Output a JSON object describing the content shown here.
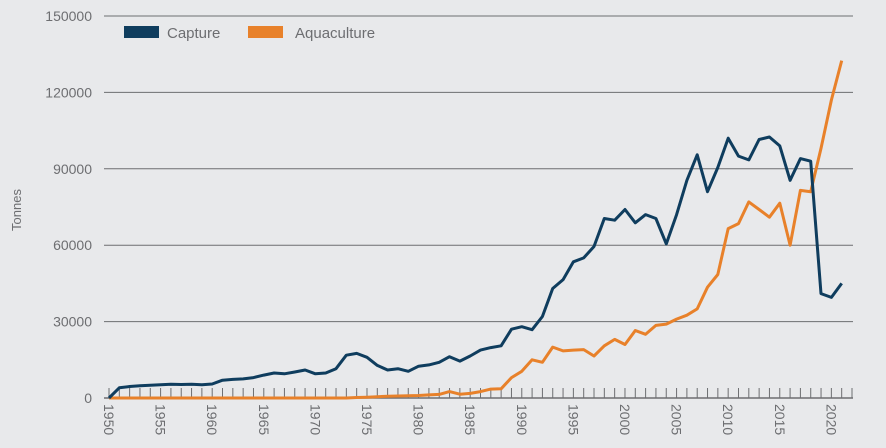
{
  "chart_data": {
    "type": "line",
    "title": "",
    "xlabel": "",
    "ylabel": "Tonnes",
    "ylim": [
      0,
      150000
    ],
    "xlim": [
      1950,
      2022
    ],
    "yticks": [
      0,
      30000,
      60000,
      90000,
      120000,
      150000
    ],
    "ytick_labels": [
      "0",
      "30000",
      "60000",
      "90000",
      "120000",
      "150000"
    ],
    "xtick_labels": [
      "1950",
      "1955",
      "1960",
      "1965",
      "1970",
      "1975",
      "1980",
      "1985",
      "1990",
      "1995",
      "2000",
      "2005",
      "2010",
      "2015",
      "2020"
    ],
    "grid": "horizontal",
    "legend_position": "top-left",
    "x": [
      1950,
      1951,
      1952,
      1953,
      1954,
      1955,
      1956,
      1957,
      1958,
      1959,
      1960,
      1961,
      1962,
      1963,
      1964,
      1965,
      1966,
      1967,
      1968,
      1969,
      1970,
      1971,
      1972,
      1973,
      1974,
      1975,
      1976,
      1977,
      1978,
      1979,
      1980,
      1981,
      1982,
      1983,
      1984,
      1985,
      1986,
      1987,
      1988,
      1989,
      1990,
      1991,
      1992,
      1993,
      1994,
      1995,
      1996,
      1997,
      1998,
      1999,
      2000,
      2001,
      2002,
      2003,
      2004,
      2005,
      2006,
      2007,
      2008,
      2009,
      2010,
      2011,
      2012,
      2013,
      2014,
      2015,
      2016,
      2017,
      2018,
      2019,
      2020,
      2021
    ],
    "series": [
      {
        "name": "Capture",
        "color": "#0f3d5e",
        "values": [
          0,
          4000,
          4500,
          4800,
          5000,
          5200,
          5400,
          5300,
          5400,
          5200,
          5500,
          7000,
          7300,
          7500,
          8000,
          9000,
          9800,
          9500,
          10200,
          11000,
          9500,
          9800,
          11500,
          16800,
          17500,
          16000,
          12800,
          11000,
          11500,
          10500,
          12500,
          13000,
          14000,
          16200,
          14500,
          16500,
          18800,
          19800,
          20500,
          27000,
          28000,
          26800,
          32000,
          43000,
          46500,
          53500,
          55000,
          59500,
          70500,
          69800,
          74000,
          68800,
          72000,
          70500,
          60500,
          72000,
          85500,
          95500,
          81000,
          90500,
          102000,
          95000,
          93500,
          101500,
          102500,
          99000,
          85500,
          94000,
          93000,
          41000,
          39500,
          45000
        ]
      },
      {
        "name": "Aquaculture",
        "color": "#e8812a",
        "values": [
          0,
          0,
          0,
          0,
          0,
          0,
          0,
          0,
          0,
          0,
          0,
          0,
          0,
          0,
          0,
          0,
          0,
          0,
          0,
          0,
          0,
          0,
          0,
          0,
          200,
          300,
          500,
          700,
          800,
          900,
          1000,
          1200,
          1400,
          2500,
          1500,
          1800,
          2500,
          3500,
          3600,
          8000,
          10500,
          15000,
          14000,
          20000,
          18500,
          18800,
          19000,
          16500,
          20500,
          23000,
          21000,
          26500,
          25000,
          28500,
          29000,
          31000,
          32500,
          35000,
          43500,
          48500,
          66500,
          68500,
          77000,
          74000,
          71000,
          76500,
          60000,
          81500,
          81000,
          98000,
          117000,
          132500
        ]
      }
    ]
  }
}
